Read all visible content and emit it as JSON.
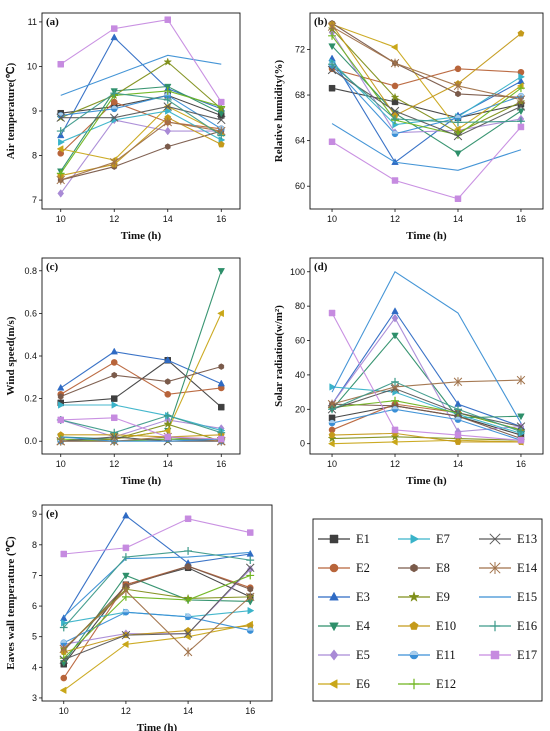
{
  "figure": {
    "series_styles": [
      {
        "name": "E1",
        "color": "#3f3f3f",
        "marker": "square"
      },
      {
        "name": "E2",
        "color": "#b8643a",
        "marker": "circle"
      },
      {
        "name": "E3",
        "color": "#2f6bc4",
        "marker": "triangle-up"
      },
      {
        "name": "E4",
        "color": "#2e8f6a",
        "marker": "triangle-down"
      },
      {
        "name": "E5",
        "color": "#a98ad6",
        "marker": "diamond"
      },
      {
        "name": "E6",
        "color": "#c9a719",
        "marker": "triangle-left"
      },
      {
        "name": "E7",
        "color": "#3ab3c9",
        "marker": "triangle-right"
      },
      {
        "name": "E8",
        "color": "#7a5a4a",
        "marker": "hexagon"
      },
      {
        "name": "E9",
        "color": "#7f8f1a",
        "marker": "star"
      },
      {
        "name": "E10",
        "color": "#c49a1a",
        "marker": "pentagon"
      },
      {
        "name": "E11",
        "color": "#3a8fd6",
        "marker": "half-circle"
      },
      {
        "name": "E12",
        "color": "#6fb51f",
        "marker": "plus"
      },
      {
        "name": "E13",
        "color": "#5a5a5a",
        "marker": "x"
      },
      {
        "name": "E14",
        "color": "#a0724a",
        "marker": "asterisk"
      },
      {
        "name": "E15",
        "color": "#3b8fd4",
        "marker": "none"
      },
      {
        "name": "E16",
        "color": "#3d9a8a",
        "marker": "plus"
      },
      {
        "name": "E17",
        "color": "#c68be0",
        "marker": "square"
      }
    ]
  },
  "chart_data": [
    {
      "panel": "(a)",
      "type": "line",
      "xlabel": "Time (h)",
      "ylabel": "Air temperature(℃)",
      "x": [
        10,
        12,
        14,
        16
      ],
      "xlim": [
        9.3,
        16.7
      ],
      "ylim": [
        6.8,
        11.2
      ],
      "yticks": [
        "7",
        "8",
        "9",
        "10",
        "11"
      ],
      "ytick_values": [
        7,
        8,
        9,
        10,
        11
      ],
      "series": [
        {
          "name": "E1",
          "values": [
            8.95,
            9.1,
            9.35,
            8.9
          ]
        },
        {
          "name": "E2",
          "values": [
            8.05,
            9.2,
            8.75,
            8.6
          ]
        },
        {
          "name": "E3",
          "values": [
            8.45,
            10.65,
            9.5,
            9.05
          ]
        },
        {
          "name": "E4",
          "values": [
            7.65,
            9.45,
            9.55,
            8.95
          ]
        },
        {
          "name": "E5",
          "values": [
            7.15,
            8.8,
            8.55,
            8.55
          ]
        },
        {
          "name": "E6",
          "values": [
            8.15,
            7.9,
            9.1,
            8.5
          ]
        },
        {
          "name": "E7",
          "values": [
            8.3,
            8.8,
            9.0,
            8.35
          ]
        },
        {
          "name": "E8",
          "values": [
            7.45,
            7.75,
            8.2,
            8.55
          ]
        },
        {
          "name": "E9",
          "values": [
            8.85,
            9.35,
            10.1,
            9.05
          ]
        },
        {
          "name": "E10",
          "values": [
            7.55,
            7.8,
            8.85,
            8.25
          ]
        },
        {
          "name": "E11",
          "values": [
            8.9,
            9.05,
            9.35,
            8.6
          ]
        },
        {
          "name": "E12",
          "values": [
            7.6,
            9.35,
            9.45,
            9.1
          ]
        },
        {
          "name": "E13",
          "values": [
            8.85,
            8.85,
            9.1,
            8.8
          ]
        },
        {
          "name": "E14",
          "values": [
            7.45,
            7.85,
            8.75,
            8.55
          ]
        },
        {
          "name": "E15",
          "values": [
            9.35,
            9.8,
            10.25,
            10.05
          ]
        },
        {
          "name": "E16",
          "values": [
            8.55,
            9.4,
            9.25,
            8.45
          ]
        },
        {
          "name": "E17",
          "values": [
            10.05,
            10.85,
            11.05,
            9.2
          ]
        }
      ]
    },
    {
      "panel": "(b)",
      "type": "line",
      "xlabel": "Time (h)",
      "ylabel": "Relative humidity(%)",
      "x": [
        10,
        12,
        14,
        16
      ],
      "xlim": [
        9.3,
        16.7
      ],
      "ylim": [
        58,
        75.2
      ],
      "yticks": [
        "60",
        "64",
        "68",
        "72"
      ],
      "ytick_values": [
        60,
        64,
        68,
        72
      ],
      "series": [
        {
          "name": "E1",
          "values": [
            68.6,
            67.4,
            66.0,
            67.2
          ]
        },
        {
          "name": "E2",
          "values": [
            70.3,
            68.8,
            70.3,
            70.0
          ]
        },
        {
          "name": "E3",
          "values": [
            71.2,
            62.1,
            66.2,
            69.2
          ]
        },
        {
          "name": "E4",
          "values": [
            72.3,
            66.4,
            62.9,
            66.6
          ]
        },
        {
          "name": "E5",
          "values": [
            73.5,
            64.7,
            64.9,
            65.9
          ]
        },
        {
          "name": "E6",
          "values": [
            74.2,
            72.2,
            65.0,
            68.8
          ]
        },
        {
          "name": "E7",
          "values": [
            70.9,
            65.4,
            66.1,
            69.6
          ]
        },
        {
          "name": "E8",
          "values": [
            74.3,
            70.8,
            68.1,
            67.8
          ]
        },
        {
          "name": "E9",
          "values": [
            73.8,
            67.8,
            64.7,
            67.4
          ]
        },
        {
          "name": "E10",
          "values": [
            74.2,
            66.2,
            69.0,
            73.4
          ]
        },
        {
          "name": "E11",
          "values": [
            70.6,
            64.6,
            66.0,
            67.9
          ]
        },
        {
          "name": "E12",
          "values": [
            73.2,
            65.8,
            64.5,
            68.6
          ]
        },
        {
          "name": "E13",
          "values": [
            70.2,
            66.6,
            64.4,
            67.0
          ]
        },
        {
          "name": "E14",
          "values": [
            74.0,
            70.8,
            68.8,
            67.6
          ]
        },
        {
          "name": "E15",
          "values": [
            65.5,
            62.1,
            61.4,
            63.2
          ]
        },
        {
          "name": "E16",
          "values": [
            70.7,
            65.9,
            65.6,
            65.7
          ]
        },
        {
          "name": "E17",
          "values": [
            63.9,
            60.5,
            58.9,
            65.2
          ]
        }
      ]
    },
    {
      "panel": "(c)",
      "type": "line",
      "xlabel": "Time (h)",
      "ylabel": "Wind speed(m/s)",
      "x": [
        10,
        12,
        14,
        16
      ],
      "xlim": [
        9.3,
        16.7
      ],
      "ylim": [
        -0.06,
        0.86
      ],
      "yticks": [
        "0.0",
        "0.2",
        "0.4",
        "0.6",
        "0.8"
      ],
      "ytick_values": [
        0,
        0.2,
        0.4,
        0.6,
        0.8
      ],
      "series": [
        {
          "name": "E1",
          "values": [
            0.18,
            0.2,
            0.38,
            0.16
          ]
        },
        {
          "name": "E2",
          "values": [
            0.22,
            0.37,
            0.22,
            0.25
          ]
        },
        {
          "name": "E3",
          "values": [
            0.25,
            0.42,
            0.38,
            0.27
          ]
        },
        {
          "name": "E4",
          "values": [
            0.02,
            0.01,
            0.05,
            0.8
          ]
        },
        {
          "name": "E5",
          "values": [
            0.1,
            0.02,
            0.1,
            0.06
          ]
        },
        {
          "name": "E6",
          "values": [
            0.0,
            0.01,
            0.05,
            0.6
          ]
        },
        {
          "name": "E7",
          "values": [
            0.17,
            0.17,
            0.12,
            0.05
          ]
        },
        {
          "name": "E8",
          "values": [
            0.21,
            0.31,
            0.28,
            0.35
          ]
        },
        {
          "name": "E9",
          "values": [
            0.0,
            0.01,
            0.08,
            0.0
          ]
        },
        {
          "name": "E10",
          "values": [
            0.03,
            0.03,
            0.02,
            0.03
          ]
        },
        {
          "name": "E11",
          "values": [
            0.0,
            0.0,
            0.01,
            0.0
          ]
        },
        {
          "name": "E12",
          "values": [
            0.01,
            0.0,
            0.01,
            0.01
          ]
        },
        {
          "name": "E13",
          "values": [
            0.0,
            0.02,
            0.0,
            0.0
          ]
        },
        {
          "name": "E14",
          "values": [
            0.0,
            0.0,
            0.02,
            0.0
          ]
        },
        {
          "name": "E15",
          "values": [
            0.02,
            0.0,
            0.0,
            0.01
          ]
        },
        {
          "name": "E16",
          "values": [
            0.1,
            0.04,
            0.12,
            0.04
          ]
        },
        {
          "name": "E17",
          "values": [
            0.1,
            0.11,
            0.02,
            0.01
          ]
        }
      ]
    },
    {
      "panel": "(d)",
      "type": "line",
      "xlabel": "Time (h)",
      "ylabel": "Solar radiation(w/m²)",
      "x": [
        10,
        12,
        14,
        16
      ],
      "xlim": [
        9.3,
        16.7
      ],
      "ylim": [
        -6,
        108
      ],
      "yticks": [
        "0",
        "20",
        "40",
        "60",
        "80",
        "100"
      ],
      "ytick_values": [
        0,
        20,
        40,
        60,
        80,
        100
      ],
      "series": [
        {
          "name": "E1",
          "values": [
            15,
            22,
            16,
            5
          ]
        },
        {
          "name": "E2",
          "values": [
            8,
            23,
            18,
            8
          ]
        },
        {
          "name": "E3",
          "values": [
            23,
            77,
            23,
            10
          ]
        },
        {
          "name": "E4",
          "values": [
            20,
            63,
            15,
            16
          ]
        },
        {
          "name": "E5",
          "values": [
            23,
            73,
            7,
            10
          ]
        },
        {
          "name": "E6",
          "values": [
            0,
            1,
            2,
            1
          ]
        },
        {
          "name": "E7",
          "values": [
            33,
            30,
            17,
            6
          ]
        },
        {
          "name": "E8",
          "values": [
            23,
            22,
            16,
            3
          ]
        },
        {
          "name": "E9",
          "values": [
            3,
            4,
            3,
            2
          ]
        },
        {
          "name": "E10",
          "values": [
            5,
            6,
            1,
            1
          ]
        },
        {
          "name": "E11",
          "values": [
            12,
            20,
            14,
            2
          ]
        },
        {
          "name": "E12",
          "values": [
            21,
            25,
            18,
            8
          ]
        },
        {
          "name": "E13",
          "values": [
            20,
            32,
            18,
            10
          ]
        },
        {
          "name": "E14",
          "values": [
            23,
            33,
            36,
            37
          ]
        },
        {
          "name": "E15",
          "values": [
            30,
            100,
            76,
            12
          ]
        },
        {
          "name": "E16",
          "values": [
            20,
            36,
            20,
            7
          ]
        },
        {
          "name": "E17",
          "values": [
            76,
            8,
            5,
            2
          ]
        }
      ]
    },
    {
      "panel": "(e)",
      "type": "line",
      "xlabel": "Time (h)",
      "ylabel": "Eaves wall temperature (℃)",
      "x": [
        10,
        12,
        14,
        16
      ],
      "xlim": [
        9.3,
        16.7
      ],
      "ylim": [
        2.9,
        9.3
      ],
      "yticks": [
        "3",
        "4",
        "5",
        "6",
        "7",
        "8",
        "9"
      ],
      "ytick_values": [
        3,
        4,
        5,
        6,
        7,
        8,
        9
      ],
      "series": [
        {
          "name": "E1",
          "values": [
            4.1,
            6.7,
            7.25,
            6.3
          ]
        },
        {
          "name": "E2",
          "values": [
            3.65,
            6.7,
            7.3,
            6.6
          ]
        },
        {
          "name": "E3",
          "values": [
            5.6,
            8.95,
            7.4,
            7.7
          ]
        },
        {
          "name": "E4",
          "values": [
            4.15,
            7.0,
            6.2,
            6.15
          ]
        },
        {
          "name": "E5",
          "values": [
            4.75,
            5.1,
            5.1,
            7.2
          ]
        },
        {
          "name": "E6",
          "values": [
            3.25,
            4.75,
            5.0,
            5.4
          ]
        },
        {
          "name": "E7",
          "values": [
            5.45,
            5.8,
            5.65,
            5.85
          ]
        },
        {
          "name": "E8",
          "values": [
            4.55,
            6.65,
            7.3,
            6.55
          ]
        },
        {
          "name": "E9",
          "values": [
            4.6,
            6.55,
            6.25,
            6.3
          ]
        },
        {
          "name": "E10",
          "values": [
            4.5,
            5.05,
            5.2,
            5.35
          ]
        },
        {
          "name": "E11",
          "values": [
            4.8,
            5.8,
            5.65,
            5.2
          ]
        },
        {
          "name": "E12",
          "values": [
            4.3,
            6.3,
            6.2,
            7.0
          ]
        },
        {
          "name": "E13",
          "values": [
            4.25,
            5.05,
            5.1,
            7.25
          ]
        },
        {
          "name": "E14",
          "values": [
            4.6,
            6.5,
            4.5,
            6.3
          ]
        },
        {
          "name": "E15",
          "values": [
            5.65,
            7.55,
            7.6,
            7.75
          ]
        },
        {
          "name": "E16",
          "values": [
            5.3,
            7.6,
            7.8,
            7.5
          ]
        },
        {
          "name": "E17",
          "values": [
            7.7,
            7.9,
            8.85,
            8.4
          ]
        }
      ]
    }
  ]
}
